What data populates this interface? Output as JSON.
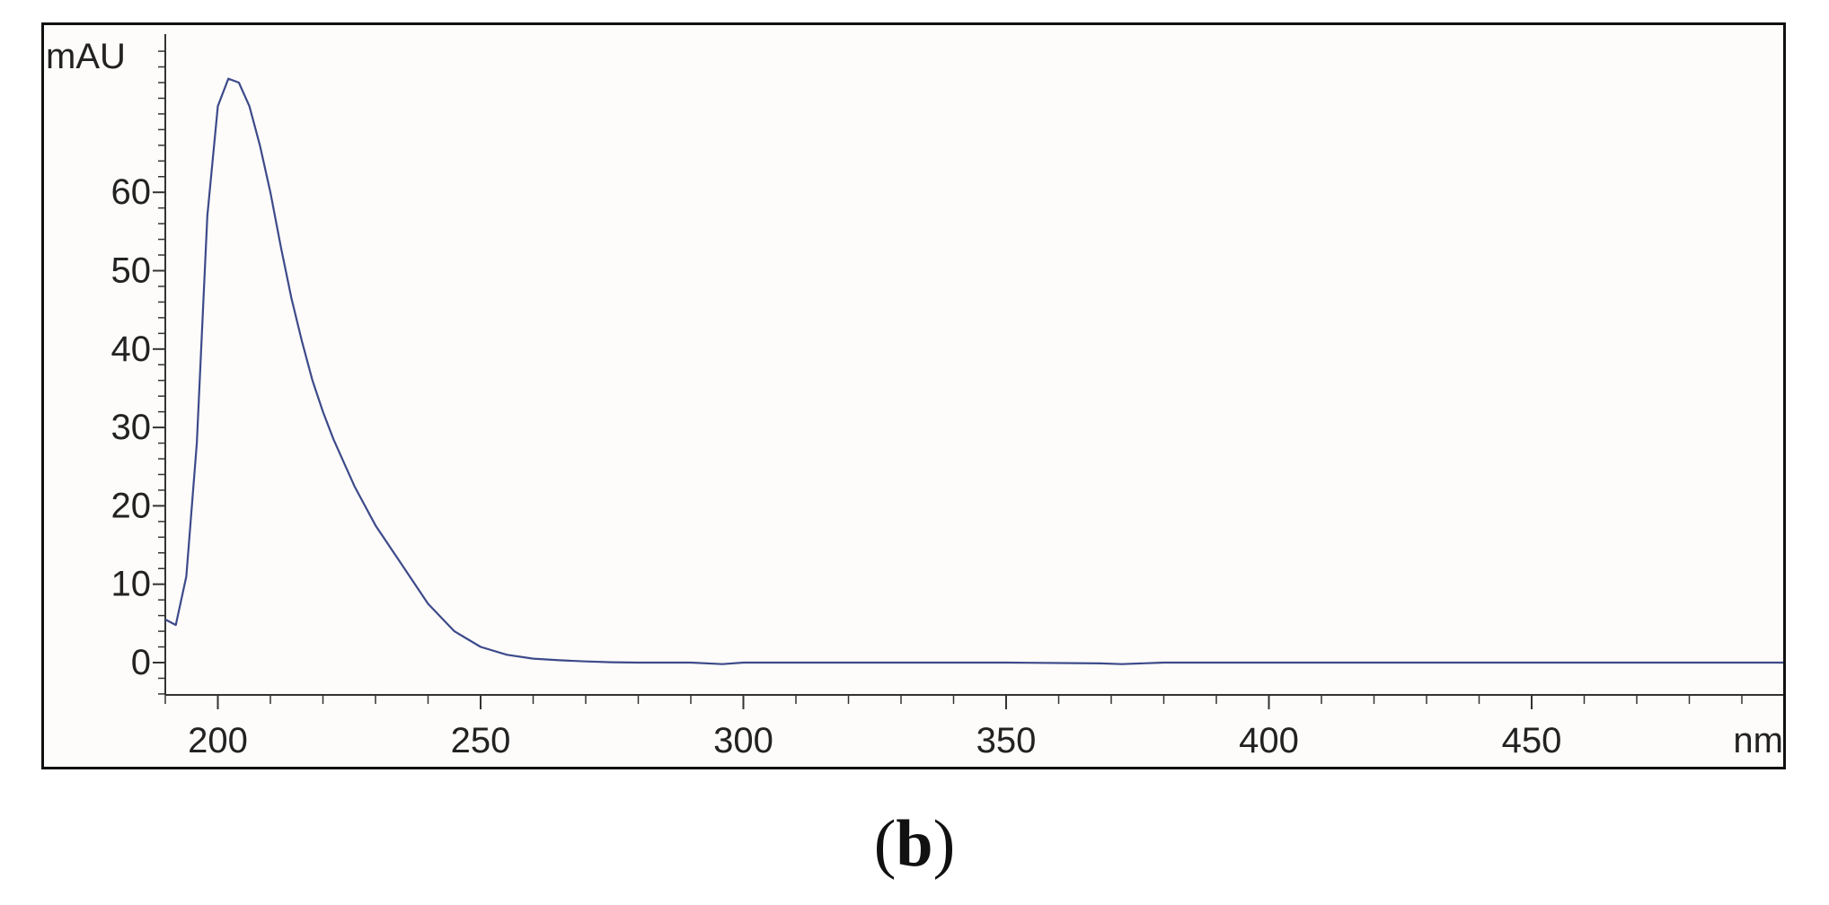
{
  "figure": {
    "caption": {
      "open": "(",
      "letter": "b",
      "close": ")"
    }
  },
  "colors": {
    "line": "#3d4a8a",
    "axis": "#333333",
    "frame": "#111111",
    "plot_bg": "#fdfcfa"
  },
  "chart_data": {
    "type": "line",
    "title": "",
    "xlabel": "nm",
    "ylabel": "mAU",
    "xlim": [
      190,
      500
    ],
    "ylim": [
      -4,
      78
    ],
    "x_ticks": [
      200,
      250,
      300,
      350,
      400,
      450
    ],
    "x_tick_labels": [
      "200",
      "250",
      "300",
      "350",
      "400",
      "450"
    ],
    "x_minor_step": 10,
    "y_ticks": [
      0,
      10,
      20,
      30,
      40,
      50,
      60
    ],
    "y_tick_labels": [
      "0",
      "10",
      "20",
      "30",
      "40",
      "50",
      "60"
    ],
    "y_minor_step": 2,
    "grid": false,
    "legend": "none",
    "series": [
      {
        "x": [
          190,
          192,
          194,
          196,
          198,
          200,
          202,
          204,
          206,
          208,
          210,
          212,
          214,
          216,
          218,
          220,
          222,
          226,
          230,
          235,
          240,
          245,
          250,
          255,
          260,
          265,
          270,
          275,
          280,
          290,
          296,
          300,
          320,
          350,
          368,
          372,
          380,
          420,
          460,
          500
        ],
        "y": [
          5.5,
          4.8,
          11,
          28,
          57,
          71,
          74.5,
          74,
          71,
          66,
          60,
          53,
          46.5,
          41,
          36,
          32,
          28.5,
          22.5,
          17.5,
          12.5,
          7.5,
          4,
          2,
          1,
          0.5,
          0.3,
          0.15,
          0.05,
          0,
          0,
          -0.2,
          0,
          0,
          0,
          -0.1,
          -0.2,
          0,
          0,
          0,
          0
        ]
      }
    ]
  }
}
